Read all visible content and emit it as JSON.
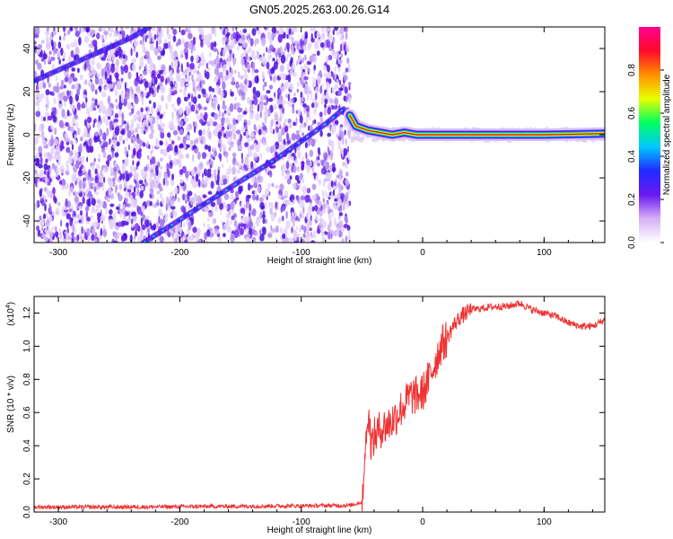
{
  "title": "GN05.2025.263.00.26.G14",
  "chart_data": [
    {
      "type": "heatmap",
      "xlabel": "Height of straight line (km)",
      "ylabel": "Frequency (Hz)",
      "xlim": [
        -320,
        150
      ],
      "ylim": [
        -50,
        50
      ],
      "xticks": [
        -300,
        -200,
        -100,
        0,
        100
      ],
      "yticks": [
        -40,
        -20,
        0,
        20,
        40
      ],
      "colorbar": {
        "label": "Normalized spectral amplitude",
        "range": [
          0,
          1
        ],
        "ticks": [
          "0.0",
          "0.2",
          "0.4",
          "0.6",
          "0.8"
        ],
        "colors": [
          "#ffffff",
          "#d5b0f5",
          "#6a18f0",
          "#1f2bff",
          "#00c8ff",
          "#00ff60",
          "#e8ff00",
          "#ff9000",
          "#ff0a2a",
          "#ff0090"
        ]
      },
      "ridges": [
        {
          "x": [
            -320,
            -280,
            -260,
            -240,
            -225
          ],
          "y": [
            25,
            35,
            40,
            45,
            50
          ]
        },
        {
          "x": [
            -230,
            -210,
            -185,
            -160,
            -140,
            -120,
            -100,
            -80,
            -65
          ],
          "y": [
            -50,
            -43,
            -34,
            -25,
            -18,
            -11,
            -3,
            5,
            12
          ]
        },
        {
          "x": [
            -60,
            -55,
            -45,
            -35,
            -25,
            -15,
            -5,
            20,
            60,
            100,
            150
          ],
          "y": [
            9,
            4,
            2,
            1,
            0,
            1,
            0,
            0,
            0,
            0,
            0.5
          ]
        }
      ]
    },
    {
      "type": "line",
      "xlabel": "Height of straight line (km)",
      "ylabel": "SNR (10 * v/v)",
      "scale_label": "(x10",
      "scale_exponent": "4",
      "xlim": [
        -320,
        150
      ],
      "ylim": [
        0,
        1.3
      ],
      "xticks": [
        -300,
        -200,
        -100,
        0,
        100
      ],
      "yticks": [
        "0.0",
        "0.2",
        "0.4",
        "0.6",
        "0.8",
        "1.0",
        "1.2"
      ],
      "color": "#f03232",
      "x": [
        -320,
        -250,
        -150,
        -60,
        -50,
        -48,
        -45,
        -42,
        -40,
        -35,
        -30,
        -25,
        -20,
        -15,
        -10,
        -5,
        0,
        5,
        10,
        15,
        20,
        25,
        30,
        40,
        50,
        60,
        70,
        80,
        90,
        100,
        110,
        120,
        130,
        140,
        150
      ],
      "y": [
        0.03,
        0.03,
        0.035,
        0.04,
        0.06,
        0.3,
        0.6,
        0.4,
        0.45,
        0.5,
        0.52,
        0.55,
        0.6,
        0.65,
        0.7,
        0.7,
        0.72,
        0.8,
        0.9,
        1.0,
        1.05,
        1.12,
        1.17,
        1.22,
        1.23,
        1.24,
        1.24,
        1.26,
        1.22,
        1.2,
        1.18,
        1.14,
        1.12,
        1.12,
        1.16
      ]
    }
  ]
}
